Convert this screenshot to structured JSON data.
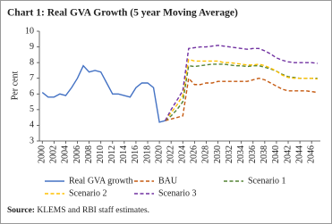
{
  "chart_data": {
    "type": "line",
    "title": "Chart 1: Real GVA Growth (5 year Moving Average)",
    "ylabel": "Per cent",
    "source": {
      "label": "Source:",
      "text": "KLEMS and RBI staff estimates."
    },
    "x": [
      2000,
      2001,
      2002,
      2003,
      2004,
      2005,
      2006,
      2007,
      2008,
      2009,
      2010,
      2011,
      2012,
      2013,
      2014,
      2015,
      2016,
      2017,
      2018,
      2019,
      2020,
      2021,
      2022,
      2023,
      2024,
      2025,
      2026,
      2027,
      2028,
      2029,
      2030,
      2031,
      2032,
      2033,
      2034,
      2035,
      2036,
      2037,
      2038,
      2039,
      2040,
      2041,
      2042,
      2043,
      2044,
      2045,
      2046,
      2047
    ],
    "xlim": [
      1999.5,
      2047.5
    ],
    "xticks": [
      2000,
      2002,
      2004,
      2006,
      2008,
      2010,
      2012,
      2014,
      2016,
      2018,
      2020,
      2022,
      2024,
      2026,
      2028,
      2030,
      2032,
      2034,
      2036,
      2038,
      2040,
      2042,
      2044,
      2046
    ],
    "ylim": [
      3,
      10
    ],
    "yticks": [
      3,
      4,
      5,
      6,
      7,
      8,
      9,
      10
    ],
    "series": [
      {
        "name": "Real GVA growth",
        "color": "#4472c4",
        "dashed": false,
        "values": [
          6.1,
          5.8,
          5.8,
          6.0,
          5.9,
          6.4,
          7.0,
          7.8,
          7.4,
          7.5,
          7.4,
          6.7,
          6.0,
          6.0,
          5.9,
          5.8,
          6.4,
          6.7,
          6.7,
          6.4,
          4.2,
          4.3,
          null,
          null,
          null,
          null,
          null,
          null,
          null,
          null,
          null,
          null,
          null,
          null,
          null,
          null,
          null,
          null,
          null,
          null,
          null,
          null,
          null,
          null,
          null,
          null,
          null,
          null
        ]
      },
      {
        "name": "BAU",
        "color": "#c55a11",
        "dashed": true,
        "values": [
          null,
          null,
          null,
          null,
          null,
          null,
          null,
          null,
          null,
          null,
          null,
          null,
          null,
          null,
          null,
          null,
          null,
          null,
          null,
          null,
          null,
          4.3,
          4.4,
          4.5,
          4.6,
          7.0,
          6.6,
          6.6,
          6.7,
          6.7,
          6.8,
          6.8,
          6.8,
          6.8,
          6.8,
          6.8,
          6.9,
          7.0,
          6.9,
          6.7,
          6.5,
          6.3,
          6.2,
          6.2,
          6.2,
          6.2,
          6.15,
          6.1
        ]
      },
      {
        "name": "Scenario 1",
        "color": "#548235",
        "dashed": true,
        "values": [
          null,
          null,
          null,
          null,
          null,
          null,
          null,
          null,
          null,
          null,
          null,
          null,
          null,
          null,
          null,
          null,
          null,
          null,
          null,
          null,
          null,
          4.3,
          4.6,
          5.0,
          5.5,
          7.8,
          7.75,
          7.8,
          7.85,
          7.9,
          7.9,
          7.9,
          7.85,
          7.8,
          7.8,
          7.75,
          7.8,
          7.8,
          7.7,
          7.6,
          7.45,
          7.25,
          7.1,
          7.05,
          7.0,
          7.0,
          7.0,
          7.0
        ]
      },
      {
        "name": "Scenario 2",
        "color": "#ffc000",
        "dashed": true,
        "values": [
          null,
          null,
          null,
          null,
          null,
          null,
          null,
          null,
          null,
          null,
          null,
          null,
          null,
          null,
          null,
          null,
          null,
          null,
          null,
          null,
          null,
          4.3,
          4.8,
          5.3,
          5.9,
          8.2,
          8.1,
          8.1,
          8.1,
          8.1,
          8.1,
          8.0,
          8.0,
          7.95,
          7.9,
          7.85,
          7.85,
          7.9,
          7.8,
          7.65,
          7.45,
          7.2,
          7.05,
          7.0,
          7.0,
          7.0,
          7.0,
          6.95
        ]
      },
      {
        "name": "Scenario 3",
        "color": "#7030a0",
        "dashed": true,
        "values": [
          null,
          null,
          null,
          null,
          null,
          null,
          null,
          null,
          null,
          null,
          null,
          null,
          null,
          null,
          null,
          null,
          null,
          null,
          null,
          null,
          null,
          4.3,
          5.0,
          5.6,
          6.2,
          8.9,
          8.95,
          9.0,
          9.0,
          9.05,
          9.1,
          9.05,
          9.0,
          8.95,
          8.9,
          8.85,
          8.9,
          8.9,
          8.75,
          8.55,
          8.3,
          8.15,
          8.05,
          8.0,
          8.0,
          8.0,
          8.0,
          7.95
        ]
      }
    ]
  }
}
